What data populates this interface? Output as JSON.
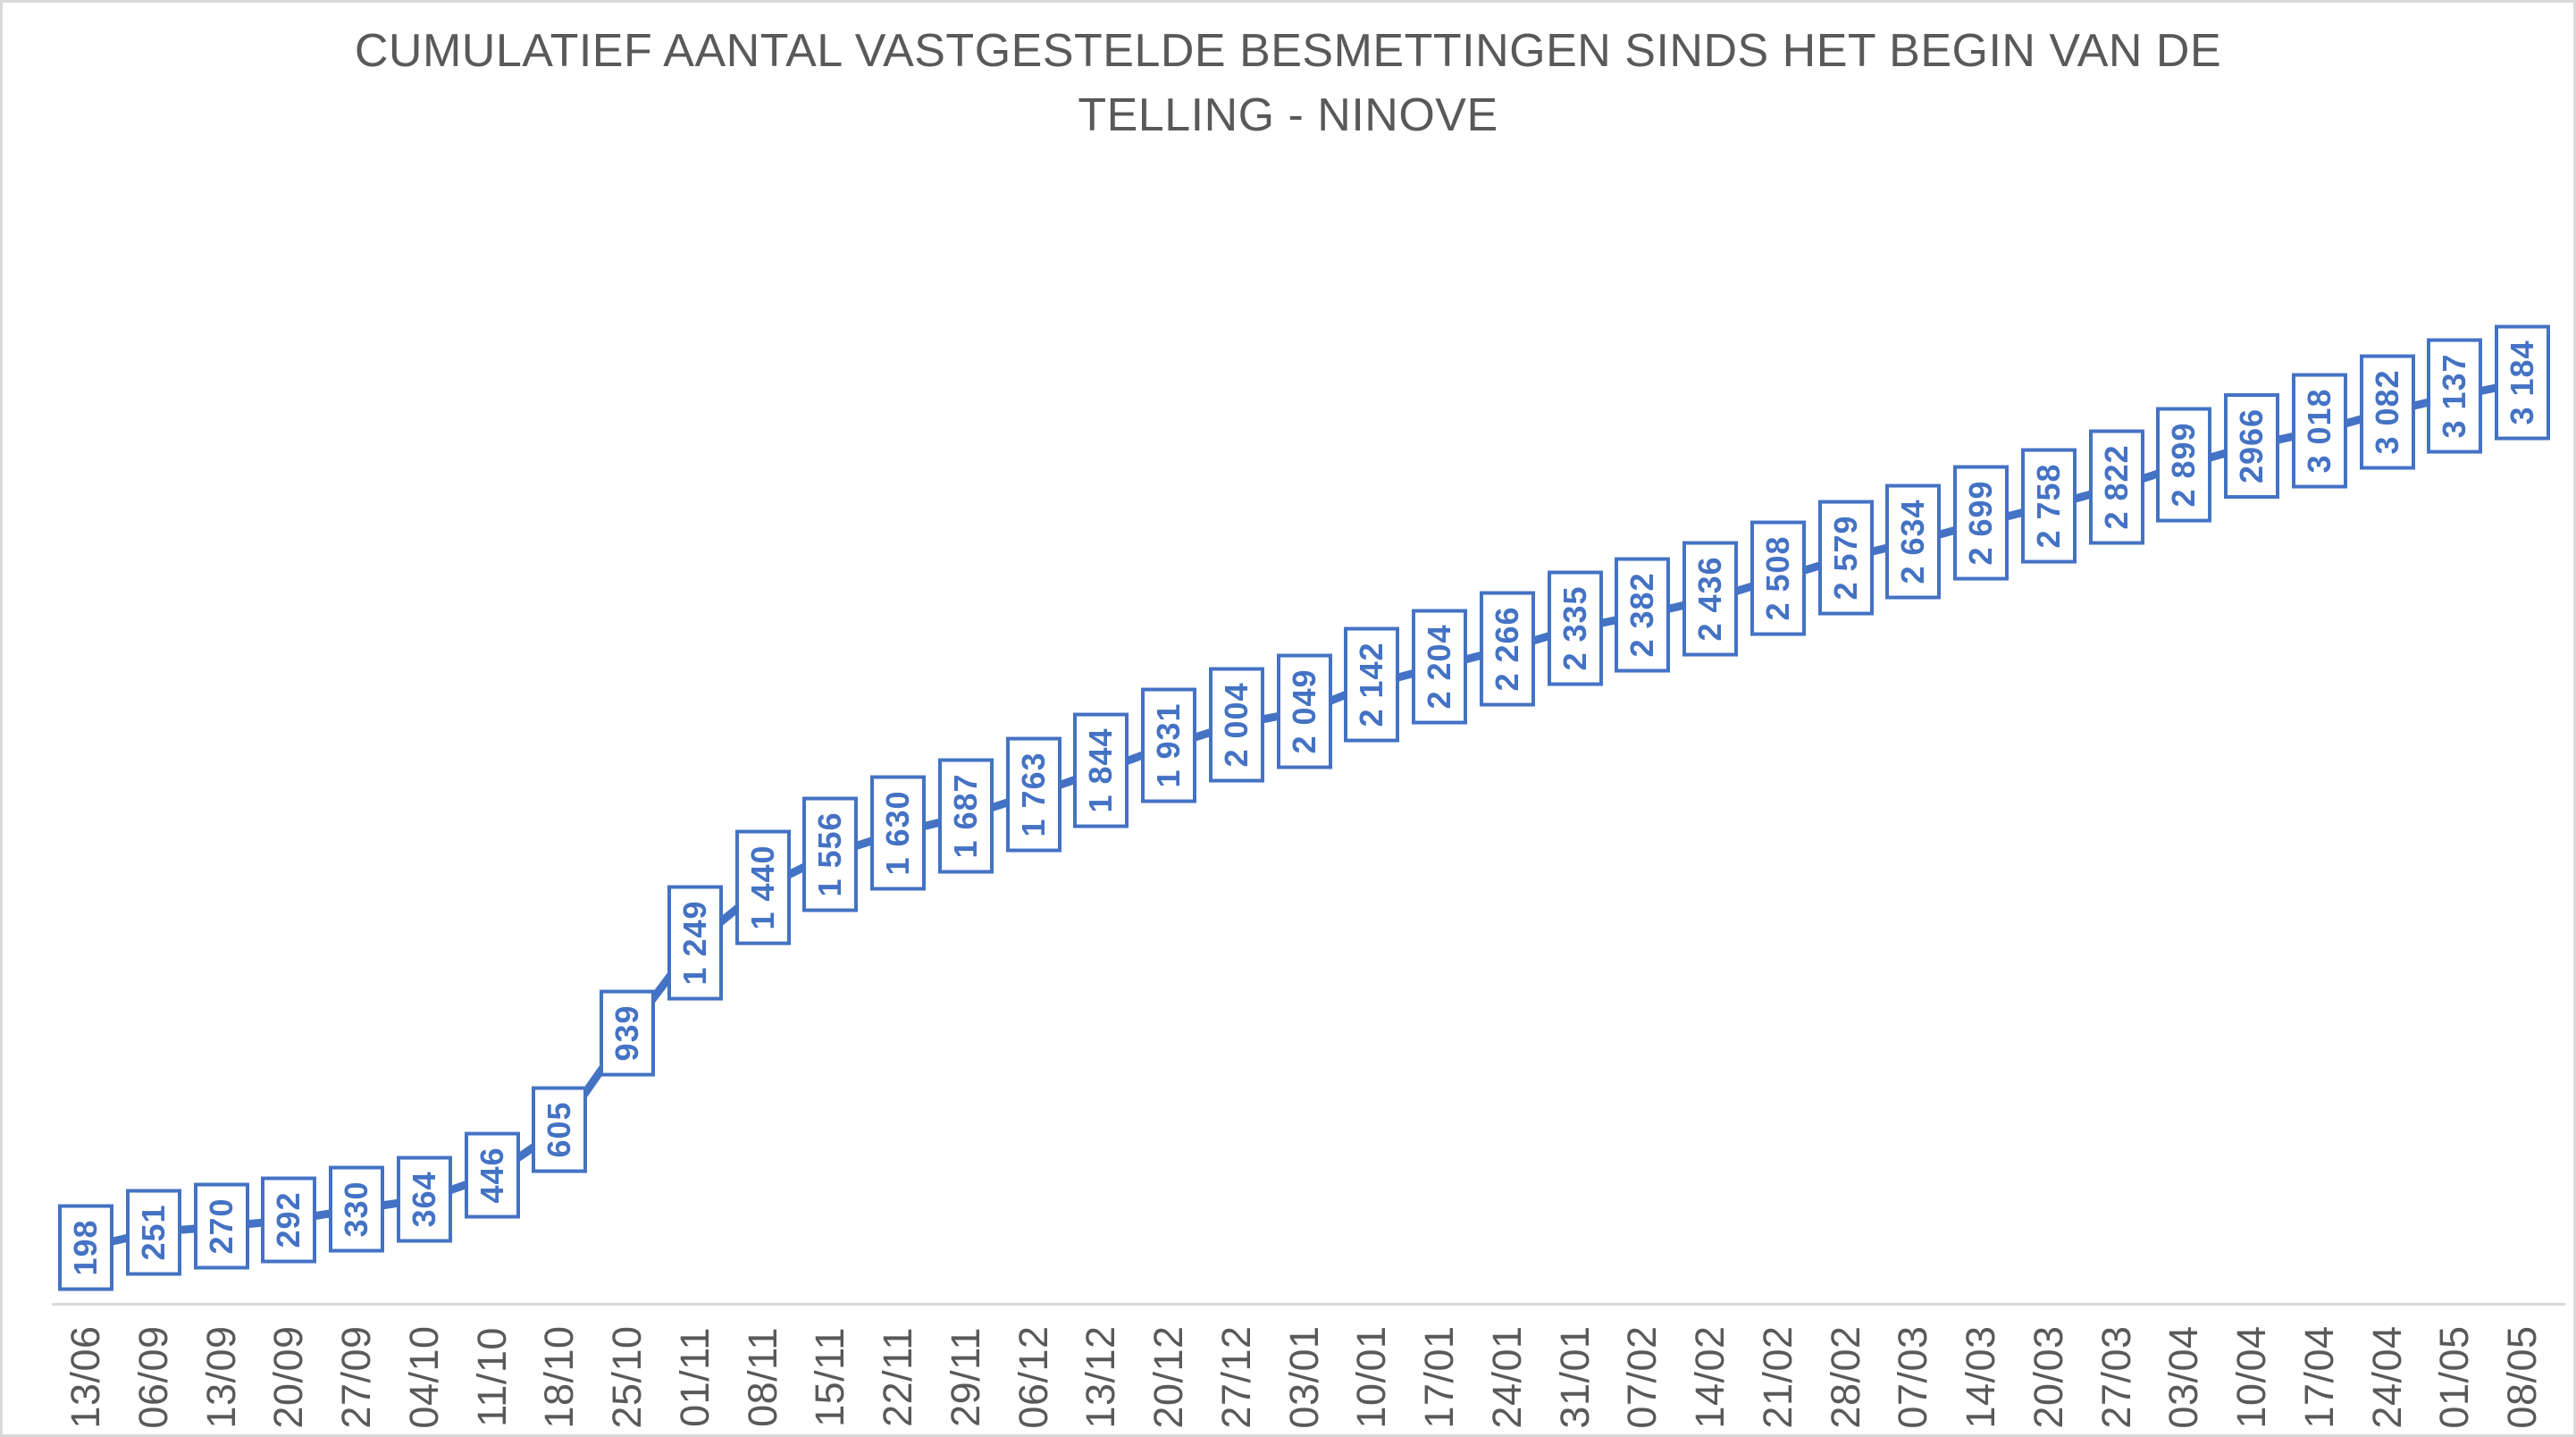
{
  "page": {
    "background": "#FFFFFF",
    "border_color": "#D9D9D9"
  },
  "chart_data": {
    "type": "line",
    "title": "CUMULATIEF AANTAL VASTGESTELDE BESMETTINGEN SINDS HET BEGIN VAN DE TELLING - NINOVE",
    "title_lines": [
      "CUMULATIEF AANTAL VASTGESTELDE BESMETTINGEN SINDS HET BEGIN VAN DE",
      "TELLING - NINOVE"
    ],
    "categories": [
      "13/06",
      "06/09",
      "13/09",
      "20/09",
      "27/09",
      "04/10",
      "11/10",
      "18/10",
      "25/10",
      "01/11",
      "08/11",
      "15/11",
      "22/11",
      "29/11",
      "06/12",
      "13/12",
      "20/12",
      "27/12",
      "03/01",
      "10/01",
      "17/01",
      "24/01",
      "31/01",
      "07/02",
      "14/02",
      "21/02",
      "28/02",
      "07/03",
      "14/03",
      "20/03",
      "27/03",
      "03/04",
      "10/04",
      "17/04",
      "24/04",
      "01/05",
      "08/05"
    ],
    "values": [
      198,
      251,
      270,
      292,
      330,
      364,
      446,
      605,
      939,
      1249,
      1440,
      1556,
      1630,
      1687,
      1763,
      1844,
      1931,
      2004,
      2049,
      2142,
      2204,
      2266,
      2335,
      2382,
      2436,
      2508,
      2579,
      2634,
      2699,
      2758,
      2822,
      2899,
      2966,
      3018,
      3082,
      3137,
      3184
    ],
    "data_labels": [
      "198",
      "251",
      "270",
      "292",
      "330",
      "364",
      "446",
      "605",
      "939",
      "1 249",
      "1 440",
      "1 556",
      "1 630",
      "1 687",
      "1 763",
      "1 844",
      "1 931",
      "2 004",
      "2 049",
      "2 142",
      "2 204",
      "2 266",
      "2 335",
      "2 382",
      "2 436",
      "2 508",
      "2 579",
      "2 634",
      "2 699",
      "2 758",
      "2 822",
      "2 899",
      "2966",
      "3 018",
      "3 082",
      "3 137",
      "3 184"
    ],
    "xlabel": "",
    "ylabel": "",
    "ylim": [
      0,
      3500
    ],
    "grid": false,
    "legend": "none",
    "data_label_orientation": "rotated-90",
    "tick_label_orientation": "rotated-90",
    "colors": {
      "line": "#4472C4",
      "data_label_text": "#4472C4",
      "data_label_border": "#4472C4",
      "data_label_fill": "#FFFFFF",
      "axis_line": "#D9D9D9",
      "tick_text": "#595959",
      "title_text": "#595959"
    }
  }
}
